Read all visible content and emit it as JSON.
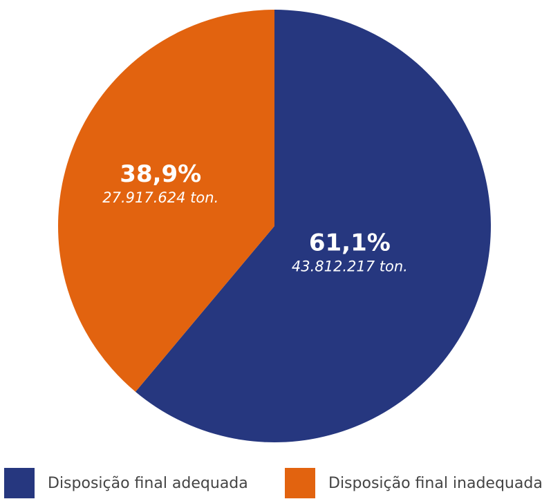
{
  "colors": {
    "adequada": "#26377F",
    "inadequada": "#E2630F",
    "label_text": "#FFFFFF"
  },
  "chart_data": {
    "type": "pie",
    "title": "",
    "slices": [
      {
        "name": "Disposição final adequada",
        "percent": 61.1,
        "percent_label": "61,1%",
        "value": 43812217,
        "value_label": "43.812.217 ton.",
        "color": "#26377F"
      },
      {
        "name": "Disposição final inadequada",
        "percent": 38.9,
        "percent_label": "38,9%",
        "value": 27917624,
        "value_label": "27.917.624 ton.",
        "color": "#E2630F"
      }
    ],
    "legend_position": "bottom"
  },
  "legend": {
    "items": [
      {
        "label": "Disposição final adequada",
        "color": "#26377F"
      },
      {
        "label": "Disposição final inadequada",
        "color": "#E2630F"
      }
    ]
  }
}
